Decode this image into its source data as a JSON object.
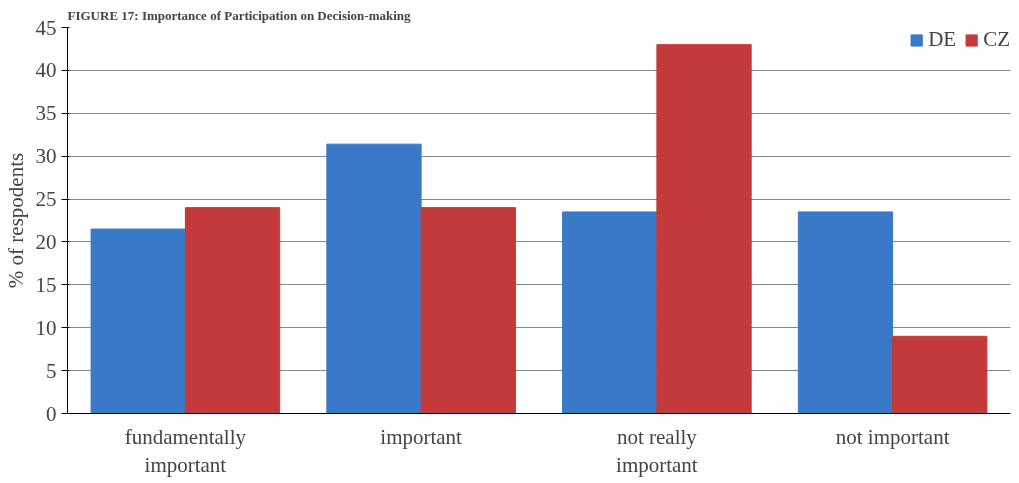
{
  "chart_data": {
    "type": "bar",
    "title": "FIGURE 17: Importance of Participation on Decision-making",
    "ylabel": "% of respodents",
    "categories": [
      "fundamentally important",
      "important",
      "not really important",
      "not important"
    ],
    "series": [
      {
        "name": "DE",
        "color": "#3a78c8",
        "values": [
          21.5,
          31.4,
          23.5,
          23.5
        ]
      },
      {
        "name": "CZ",
        "color": "#c43a3a",
        "values": [
          24,
          24,
          43,
          9
        ]
      }
    ],
    "ylim": [
      0,
      45
    ],
    "yticks": [
      0,
      5,
      10,
      15,
      20,
      25,
      30,
      35,
      40,
      45
    ],
    "grid": "y",
    "legend": "top right"
  }
}
